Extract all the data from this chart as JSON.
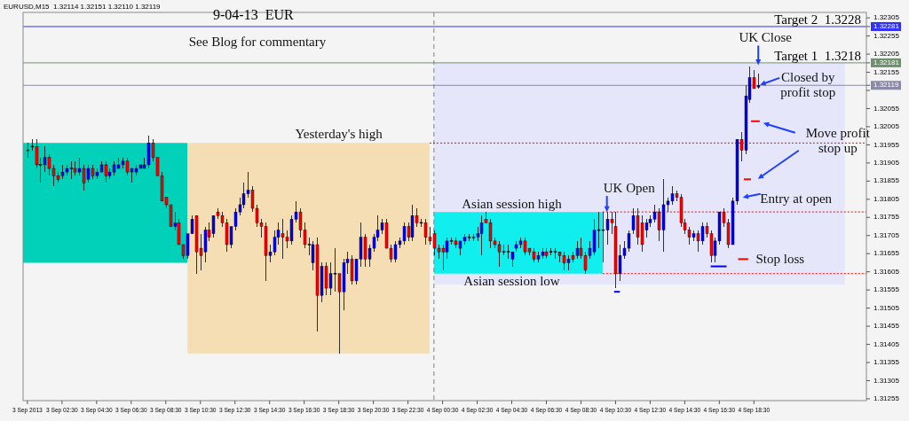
{
  "chart_data": {
    "type": "candlestick",
    "title": "EURUSD,M15  1.32114 1.32151 1.32110 1.32119",
    "subtitle": "9-04-13  EUR",
    "xlim": [
      "2013-09-03T00:15",
      "2013-09-05T01:00"
    ],
    "xticks": [
      {
        "value": "2013-09-03T00:30",
        "label": "3 Sep 2013"
      },
      {
        "value": "2013-09-03T02:30",
        "label": "3 Sep 02:30"
      },
      {
        "value": "2013-09-03T04:30",
        "label": "3 Sep 04:30"
      },
      {
        "value": "2013-09-03T06:30",
        "label": "3 Sep 06:30"
      },
      {
        "value": "2013-09-03T08:30",
        "label": "3 Sep 08:30"
      },
      {
        "value": "2013-09-03T10:30",
        "label": "3 Sep 10:30"
      },
      {
        "value": "2013-09-03T12:30",
        "label": "3 Sep 12:30"
      },
      {
        "value": "2013-09-03T14:30",
        "label": "3 Sep 14:30"
      },
      {
        "value": "2013-09-03T16:30",
        "label": "3 Sep 16:30"
      },
      {
        "value": "2013-09-03T18:30",
        "label": "3 Sep 18:30"
      },
      {
        "value": "2013-09-03T20:30",
        "label": "3 Sep 20:30"
      },
      {
        "value": "2013-09-03T22:30",
        "label": "3 Sep 22:30"
      },
      {
        "value": "2013-09-04T00:30",
        "label": "4 Sep 00:30"
      },
      {
        "value": "2013-09-04T02:30",
        "label": "4 Sep 02:30"
      },
      {
        "value": "2013-09-04T04:30",
        "label": "4 Sep 04:30"
      },
      {
        "value": "2013-09-04T06:30",
        "label": "4 Sep 06:30"
      },
      {
        "value": "2013-09-04T08:30",
        "label": "4 Sep 08:30"
      },
      {
        "value": "2013-09-04T10:30",
        "label": "4 Sep 10:30"
      },
      {
        "value": "2013-09-04T12:30",
        "label": "4 Sep 12:30"
      },
      {
        "value": "2013-09-04T14:30",
        "label": "4 Sep 14:30"
      },
      {
        "value": "2013-09-04T16:30",
        "label": "4 Sep 16:30"
      },
      {
        "value": "2013-09-04T18:30",
        "label": "4 Sep 18:30"
      }
    ],
    "ylim": [
      1.3125,
      1.3232
    ],
    "yticks": [
      1.32305,
      1.32281,
      1.32255,
      1.32205,
      1.32181,
      1.32155,
      1.32119,
      {
        "value": 1.32105,
        "label": null
      },
      1.32055,
      1.32005,
      1.31955,
      1.31905,
      1.31855,
      1.31805,
      1.31755,
      1.31705,
      1.31655,
      1.31605,
      1.31555,
      1.31505,
      1.31455,
      1.31405,
      1.31355,
      1.31305,
      1.31255
    ],
    "colors": [
      "#000000",
      "#000000",
      "#ff0000",
      "#000000",
      "#0000ff",
      "#ff0000",
      "#ff0000",
      "#ff0000",
      "#0000ff",
      "#0000ff",
      "#000000",
      "#ff0000",
      "#0000ff",
      "#ff0000",
      "#0000ff",
      "#ff0000",
      "#0000ff",
      "#0000ff",
      "#ff0000",
      "#0000ff",
      "#0000ff",
      "#0000ff",
      "#0000ff",
      "#ff0000",
      "#0000ff",
      "#0000ff",
      "#0000ff",
      "#0000ff",
      "#0000ff",
      "#ff0000",
      "#ff0000",
      "#ff0000",
      "#ff0000",
      "#ff0000",
      "#0000ff",
      "#ff0000",
      "#ff0000",
      "#0000ff",
      "#0000ff",
      "#ff0000",
      "#ff0000",
      "#0000ff",
      "#ff0000",
      "#0000ff",
      "#ff0000",
      "#ff0000",
      "#ff0000",
      "#0000ff",
      "#0000ff",
      "#0000ff",
      "#0000ff",
      "#0000ff",
      "#ff0000",
      "#ff0000",
      "#ff0000",
      "#ff0000",
      "#0000ff",
      "#0000ff",
      "#0000ff",
      "#ff0000",
      "#ff0000",
      "#0000ff",
      "#0000ff",
      "#ff0000",
      "#ff0000",
      "#000000",
      "#0000ff",
      "#ff0000",
      "#0000ff",
      "#ff0000",
      "#0000ff",
      "#000000",
      "#ff0000",
      "#0000ff",
      "#0000ff",
      "#ff0000",
      "#0000ff",
      "#0000ff",
      "#ff0000",
      "#0000ff",
      "#0000ff",
      "#0000ff",
      "#0000ff",
      "#ff0000",
      "#ff0000",
      "#0000ff",
      "#0000ff",
      "#0000ff",
      "#ff0000",
      "#0000ff",
      "#ff0000",
      "#000000",
      "#ff0000",
      "#ff0000",
      "#ff0000",
      "#ff0000",
      "#ff0000",
      "#0000ff",
      "#000000",
      "#ff0000",
      "#0000ff",
      "#0000ff",
      "#000000",
      "#000000",
      "#0000ff",
      "#0000ff",
      "#ff0000",
      "#ff0000",
      "#ff0000",
      "#ff0000",
      "#000000",
      "#000000",
      "#0000ff",
      "#0000ff",
      "#0000ff",
      "#ff0000",
      "#ff0000",
      "#ff0000",
      "#0000ff",
      "#0000ff",
      "#ff0000",
      "#000000",
      "#000000",
      "#ff0000",
      "#ff0000",
      "#0000ff",
      "#ff0000",
      "#0000ff",
      "#ff0000",
      "#ff0000",
      "#0000ff",
      "#0000ff",
      "#000000",
      "#000000",
      "#0000ff",
      "#ff0000",
      "#ff0000",
      "#0000ff",
      "#0000ff",
      "#0000ff",
      "#0000ff",
      "#ff0000",
      "#ff0000",
      "#0000ff",
      "#0000ff",
      "#0000ff",
      "#ff0000",
      "#0000ff",
      "#0000ff",
      "#0000ff",
      "#ff0000",
      "#ff0000",
      "#ff0000",
      "#ff0000",
      "#0000ff",
      "#ff0000",
      "#0000ff",
      "#ff0000",
      "#ff0000",
      "#0000ff",
      "#0000ff",
      "#ff0000",
      "#ff0000",
      "#0000ff",
      "#0000ff",
      "#ff0000",
      "#0000ff",
      "#0000ff",
      "#ff0000",
      "#0000ff"
    ],
    "x": [
      "2013-09-03T00:30",
      "2013-09-03T00:45",
      "2013-09-03T01:00",
      "2013-09-03T01:15",
      "2013-09-03T01:30",
      "2013-09-03T01:45",
      "2013-09-03T02:00",
      "2013-09-03T02:15",
      "2013-09-03T02:30",
      "2013-09-03T02:45",
      "2013-09-03T03:00",
      "2013-09-03T03:15",
      "2013-09-03T03:30",
      "2013-09-03T03:45",
      "2013-09-03T04:00",
      "2013-09-03T04:15",
      "2013-09-03T04:30",
      "2013-09-03T04:45",
      "2013-09-03T05:00",
      "2013-09-03T05:15",
      "2013-09-03T05:30",
      "2013-09-03T05:45",
      "2013-09-03T06:00",
      "2013-09-03T06:15",
      "2013-09-03T06:30",
      "2013-09-03T06:45",
      "2013-09-03T07:00",
      "2013-09-03T07:15",
      "2013-09-03T07:30",
      "2013-09-03T07:45",
      "2013-09-03T08:00",
      "2013-09-03T08:15",
      "2013-09-03T08:30",
      "2013-09-03T08:45",
      "2013-09-03T09:00",
      "2013-09-03T09:15",
      "2013-09-03T09:30",
      "2013-09-03T09:45",
      "2013-09-03T10:00",
      "2013-09-03T10:15",
      "2013-09-03T10:30",
      "2013-09-03T10:45",
      "2013-09-03T11:00",
      "2013-09-03T11:15",
      "2013-09-03T11:30",
      "2013-09-03T11:45",
      "2013-09-03T12:00",
      "2013-09-03T12:15",
      "2013-09-03T12:30",
      "2013-09-03T12:45",
      "2013-09-03T13:00",
      "2013-09-03T13:15",
      "2013-09-03T13:30",
      "2013-09-03T13:45",
      "2013-09-03T14:00",
      "2013-09-03T14:15",
      "2013-09-03T14:30",
      "2013-09-03T14:45",
      "2013-09-03T15:00",
      "2013-09-03T15:15",
      "2013-09-03T15:30",
      "2013-09-03T15:45",
      "2013-09-03T16:00",
      "2013-09-03T16:15",
      "2013-09-03T16:30",
      "2013-09-03T16:45",
      "2013-09-03T17:00",
      "2013-09-03T17:15",
      "2013-09-03T17:30",
      "2013-09-03T17:45",
      "2013-09-03T18:00",
      "2013-09-03T18:15",
      "2013-09-03T18:30",
      "2013-09-03T18:45",
      "2013-09-03T19:00",
      "2013-09-03T19:15",
      "2013-09-03T19:30",
      "2013-09-03T19:45",
      "2013-09-03T20:00",
      "2013-09-03T20:15",
      "2013-09-03T20:30",
      "2013-09-03T20:45",
      "2013-09-03T21:00",
      "2013-09-03T21:15",
      "2013-09-03T21:30",
      "2013-09-03T21:45",
      "2013-09-03T22:00",
      "2013-09-03T22:15",
      "2013-09-03T22:30",
      "2013-09-03T22:45",
      "2013-09-03T23:00",
      "2013-09-03T23:15",
      "2013-09-03T23:30",
      "2013-09-03T23:45",
      "2013-09-04T00:00",
      "2013-09-04T00:15",
      "2013-09-04T00:30",
      "2013-09-04T00:45",
      "2013-09-04T01:00",
      "2013-09-04T01:15",
      "2013-09-04T01:30",
      "2013-09-04T01:45",
      "2013-09-04T02:00",
      "2013-09-04T02:15",
      "2013-09-04T02:30",
      "2013-09-04T02:45",
      "2013-09-04T03:00",
      "2013-09-04T03:15",
      "2013-09-04T03:30",
      "2013-09-04T03:45",
      "2013-09-04T04:00",
      "2013-09-04T04:15",
      "2013-09-04T04:30",
      "2013-09-04T04:45",
      "2013-09-04T05:00",
      "2013-09-04T05:15",
      "2013-09-04T05:30",
      "2013-09-04T05:45",
      "2013-09-04T06:00",
      "2013-09-04T06:15",
      "2013-09-04T06:30",
      "2013-09-04T06:45",
      "2013-09-04T07:00",
      "2013-09-04T07:15",
      "2013-09-04T07:30",
      "2013-09-04T07:45",
      "2013-09-04T08:00",
      "2013-09-04T08:15",
      "2013-09-04T08:30",
      "2013-09-04T08:45",
      "2013-09-04T09:00",
      "2013-09-04T09:15",
      "2013-09-04T09:30",
      "2013-09-04T09:45",
      "2013-09-04T10:00",
      "2013-09-04T10:15",
      "2013-09-04T10:30",
      "2013-09-04T10:45",
      "2013-09-04T11:00",
      "2013-09-04T11:15",
      "2013-09-04T11:30",
      "2013-09-04T11:45",
      "2013-09-04T12:00",
      "2013-09-04T12:15",
      "2013-09-04T12:30",
      "2013-09-04T12:45",
      "2013-09-04T13:00",
      "2013-09-04T13:15",
      "2013-09-04T13:30",
      "2013-09-04T13:45",
      "2013-09-04T14:00",
      "2013-09-04T14:15",
      "2013-09-04T14:30",
      "2013-09-04T14:45",
      "2013-09-04T15:00",
      "2013-09-04T15:15",
      "2013-09-04T15:30",
      "2013-09-04T15:45",
      "2013-09-04T16:00",
      "2013-09-04T16:15",
      "2013-09-04T16:30",
      "2013-09-04T16:45",
      "2013-09-04T17:00",
      "2013-09-04T17:15",
      "2013-09-04T17:30",
      "2013-09-04T17:45",
      "2013-09-04T18:00",
      "2013-09-04T18:15",
      "2013-09-04T18:30",
      "2013-09-04T18:45"
    ],
    "ohlc": [
      [
        1.3194,
        1.3196,
        1.3192,
        1.3194
      ],
      [
        1.3195,
        1.3197,
        1.3194,
        1.3195
      ],
      [
        1.3195,
        1.3197,
        1.3189,
        1.319
      ],
      [
        1.319,
        1.3192,
        1.3185,
        1.319
      ],
      [
        1.319,
        1.3195,
        1.3188,
        1.3192
      ],
      [
        1.3192,
        1.3193,
        1.3187,
        1.3189
      ],
      [
        1.3189,
        1.319,
        1.3184,
        1.3187
      ],
      [
        1.3187,
        1.3188,
        1.3185,
        1.3186
      ],
      [
        1.3187,
        1.319,
        1.3186,
        1.3188
      ],
      [
        1.3188,
        1.319,
        1.3187,
        1.3189
      ],
      [
        1.3189,
        1.3191,
        1.3186,
        1.3189
      ],
      [
        1.3189,
        1.3191,
        1.3187,
        1.3188
      ],
      [
        1.3188,
        1.3192,
        1.3187,
        1.3189
      ],
      [
        1.3189,
        1.319,
        1.3183,
        1.3185
      ],
      [
        1.3186,
        1.319,
        1.3185,
        1.3189
      ],
      [
        1.3189,
        1.319,
        1.3186,
        1.3187
      ],
      [
        1.3187,
        1.3189,
        1.3186,
        1.3188
      ],
      [
        1.3188,
        1.3191,
        1.3188,
        1.319
      ],
      [
        1.319,
        1.3191,
        1.3185,
        1.3187
      ],
      [
        1.3187,
        1.3189,
        1.3186,
        1.3188
      ],
      [
        1.3188,
        1.3191,
        1.3187,
        1.319
      ],
      [
        1.3189,
        1.3192,
        1.3189,
        1.319
      ],
      [
        1.319,
        1.3192,
        1.3189,
        1.3191
      ],
      [
        1.3191,
        1.3192,
        1.3187,
        1.3188
      ],
      [
        1.3188,
        1.3189,
        1.3185,
        1.3189
      ],
      [
        1.3188,
        1.319,
        1.3187,
        1.3189
      ],
      [
        1.3189,
        1.319,
        1.3189,
        1.319
      ],
      [
        1.3189,
        1.3192,
        1.3189,
        1.319
      ],
      [
        1.319,
        1.3198,
        1.3189,
        1.3196
      ],
      [
        1.3196,
        1.3197,
        1.3191,
        1.3192
      ],
      [
        1.3192,
        1.3192,
        1.3187,
        1.3187
      ],
      [
        1.3187,
        1.3188,
        1.318,
        1.318
      ],
      [
        1.3181,
        1.3181,
        1.3178,
        1.3179
      ],
      [
        1.3179,
        1.3179,
        1.3173,
        1.3173
      ],
      [
        1.3173,
        1.3177,
        1.3172,
        1.3174
      ],
      [
        1.3174,
        1.3175,
        1.3168,
        1.3168
      ],
      [
        1.3168,
        1.3168,
        1.3164,
        1.3165
      ],
      [
        1.3165,
        1.3171,
        1.3164,
        1.3171
      ],
      [
        1.3171,
        1.3176,
        1.3171,
        1.3175
      ],
      [
        1.3176,
        1.3176,
        1.316,
        1.3166
      ],
      [
        1.3167,
        1.3171,
        1.3161,
        1.3165
      ],
      [
        1.3166,
        1.3173,
        1.3163,
        1.3172
      ],
      [
        1.3172,
        1.3174,
        1.3169,
        1.317
      ],
      [
        1.3171,
        1.3176,
        1.317,
        1.3176
      ],
      [
        1.3177,
        1.3178,
        1.3175,
        1.3176
      ],
      [
        1.3176,
        1.3177,
        1.3173,
        1.3174
      ],
      [
        1.3174,
        1.3175,
        1.3166,
        1.3168
      ],
      [
        1.3168,
        1.3173,
        1.3167,
        1.3173
      ],
      [
        1.3173,
        1.3178,
        1.3172,
        1.3177
      ],
      [
        1.3177,
        1.3181,
        1.3176,
        1.3179
      ],
      [
        1.3179,
        1.3185,
        1.3178,
        1.3182
      ],
      [
        1.3182,
        1.3188,
        1.3181,
        1.3183
      ],
      [
        1.3183,
        1.3184,
        1.3177,
        1.3178
      ],
      [
        1.3178,
        1.3179,
        1.3173,
        1.3174
      ],
      [
        1.3174,
        1.3175,
        1.317,
        1.3173
      ],
      [
        1.3173,
        1.3174,
        1.3158,
        1.3165
      ],
      [
        1.3165,
        1.3168,
        1.3163,
        1.3166
      ],
      [
        1.3166,
        1.3172,
        1.3165,
        1.317
      ],
      [
        1.317,
        1.3174,
        1.3168,
        1.3172
      ],
      [
        1.3171,
        1.3175,
        1.3164,
        1.317
      ],
      [
        1.317,
        1.3172,
        1.3167,
        1.3169
      ],
      [
        1.3169,
        1.3176,
        1.3168,
        1.3175
      ],
      [
        1.3175,
        1.318,
        1.3174,
        1.3177
      ],
      [
        1.3177,
        1.3178,
        1.317,
        1.3172
      ],
      [
        1.3172,
        1.3174,
        1.3167,
        1.3168
      ],
      [
        1.3168,
        1.317,
        1.3165,
        1.3168
      ],
      [
        1.3163,
        1.3169,
        1.3161,
        1.3168
      ],
      [
        1.3168,
        1.317,
        1.3144,
        1.3154
      ],
      [
        1.3154,
        1.3163,
        1.3152,
        1.3162
      ],
      [
        1.3162,
        1.3163,
        1.3154,
        1.3156
      ],
      [
        1.3156,
        1.3163,
        1.3154,
        1.316
      ],
      [
        1.316,
        1.3167,
        1.3155,
        1.316
      ],
      [
        1.316,
        1.316,
        1.3138,
        1.3155
      ],
      [
        1.3155,
        1.3164,
        1.315,
        1.3163
      ],
      [
        1.3163,
        1.3166,
        1.316,
        1.3164
      ],
      [
        1.3164,
        1.3165,
        1.3157,
        1.3158
      ],
      [
        1.3158,
        1.3164,
        1.3157,
        1.3164
      ],
      [
        1.3164,
        1.3174,
        1.3162,
        1.317
      ],
      [
        1.317,
        1.3171,
        1.3162,
        1.3164
      ],
      [
        1.3164,
        1.3168,
        1.3162,
        1.3167
      ],
      [
        1.3167,
        1.3171,
        1.3166,
        1.317
      ],
      [
        1.317,
        1.3176,
        1.3169,
        1.3172
      ],
      [
        1.3172,
        1.3175,
        1.3171,
        1.3174
      ],
      [
        1.3174,
        1.3175,
        1.3167,
        1.3167
      ],
      [
        1.3167,
        1.3168,
        1.3163,
        1.3164
      ],
      [
        1.3164,
        1.3169,
        1.3163,
        1.3168
      ],
      [
        1.3168,
        1.317,
        1.3167,
        1.3169
      ],
      [
        1.3169,
        1.3174,
        1.3168,
        1.3173
      ],
      [
        1.3173,
        1.3174,
        1.3169,
        1.317
      ],
      [
        1.317,
        1.3179,
        1.3169,
        1.3176
      ],
      [
        1.3176,
        1.3178,
        1.3173,
        1.3174
      ],
      [
        1.3174,
        1.3175,
        1.3173,
        1.3174
      ],
      [
        1.3174,
        1.3175,
        1.3168,
        1.317
      ],
      [
        1.317,
        1.3173,
        1.3168,
        1.3169
      ],
      [
        1.3171,
        1.3172,
        1.3165,
        1.3167
      ],
      [
        1.3167,
        1.3168,
        1.3164,
        1.3166
      ],
      [
        1.3167,
        1.3168,
        1.3161,
        1.3166
      ],
      [
        1.3166,
        1.317,
        1.3164,
        1.3169
      ],
      [
        1.3169,
        1.317,
        1.3168,
        1.3169
      ],
      [
        1.3169,
        1.317,
        1.3167,
        1.3168
      ],
      [
        1.3167,
        1.3169,
        1.3165,
        1.3169
      ],
      [
        1.3169,
        1.3171,
        1.3168,
        1.317
      ],
      [
        1.317,
        1.3171,
        1.3169,
        1.317
      ],
      [
        1.317,
        1.3171,
        1.3169,
        1.317
      ],
      [
        1.317,
        1.3173,
        1.3169,
        1.3171
      ],
      [
        1.3171,
        1.3176,
        1.3165,
        1.3174
      ],
      [
        1.3175,
        1.3177,
        1.3174,
        1.3174
      ],
      [
        1.3174,
        1.3175,
        1.3167,
        1.3169
      ],
      [
        1.3169,
        1.317,
        1.3167,
        1.3168
      ],
      [
        1.3168,
        1.3169,
        1.3162,
        1.3166
      ],
      [
        1.3166,
        1.3168,
        1.3165,
        1.3166
      ],
      [
        1.3166,
        1.3168,
        1.3164,
        1.3166
      ],
      [
        1.3164,
        1.3166,
        1.3162,
        1.3166
      ],
      [
        1.3167,
        1.3169,
        1.3166,
        1.3168
      ],
      [
        1.3168,
        1.317,
        1.3167,
        1.3169
      ],
      [
        1.3169,
        1.317,
        1.3165,
        1.3166
      ],
      [
        1.3167,
        1.3167,
        1.3165,
        1.3166
      ],
      [
        1.3166,
        1.3167,
        1.3163,
        1.3164
      ],
      [
        1.3164,
        1.3166,
        1.3163,
        1.3165
      ],
      [
        1.3165,
        1.3167,
        1.3164,
        1.3166
      ],
      [
        1.3166,
        1.3167,
        1.3164,
        1.3165
      ],
      [
        1.3166,
        1.3167,
        1.3165,
        1.3166
      ],
      [
        1.3166,
        1.3167,
        1.3164,
        1.3166
      ],
      [
        1.3166,
        1.3166,
        1.3163,
        1.3165
      ],
      [
        1.3165,
        1.3166,
        1.3161,
        1.3163
      ],
      [
        1.3163,
        1.3165,
        1.3161,
        1.3164
      ],
      [
        1.3165,
        1.3166,
        1.3163,
        1.3164
      ],
      [
        1.3165,
        1.3169,
        1.3164,
        1.3167
      ],
      [
        1.3167,
        1.317,
        1.3164,
        1.3165
      ],
      [
        1.3165,
        1.3166,
        1.316,
        1.3161
      ],
      [
        1.3165,
        1.3169,
        1.3164,
        1.3167
      ],
      [
        1.3166,
        1.3175,
        1.3165,
        1.3172
      ],
      [
        1.3172,
        1.3177,
        1.3167,
        1.3172
      ],
      [
        1.3172,
        1.3177,
        1.3163,
        1.3172
      ],
      [
        1.3172,
        1.3177,
        1.3168,
        1.3175
      ],
      [
        1.3175,
        1.3177,
        1.3171,
        1.3174
      ],
      [
        1.3173,
        1.3177,
        1.3156,
        1.316
      ],
      [
        1.316,
        1.3168,
        1.3158,
        1.3165
      ],
      [
        1.3165,
        1.3169,
        1.3164,
        1.3167
      ],
      [
        1.3167,
        1.3172,
        1.3166,
        1.3171
      ],
      [
        1.3172,
        1.3178,
        1.3171,
        1.3176
      ],
      [
        1.3176,
        1.3178,
        1.3168,
        1.317
      ],
      [
        1.3174,
        1.3176,
        1.3166,
        1.3168
      ],
      [
        1.3172,
        1.3175,
        1.317,
        1.3174
      ],
      [
        1.3174,
        1.3176,
        1.3173,
        1.3175
      ],
      [
        1.3175,
        1.3179,
        1.3174,
        1.3177
      ],
      [
        1.3177,
        1.3178,
        1.3169,
        1.3172
      ],
      [
        1.3172,
        1.3186,
        1.3166,
        1.3179
      ],
      [
        1.3179,
        1.3181,
        1.3177,
        1.318
      ],
      [
        1.318,
        1.3184,
        1.3179,
        1.3182
      ],
      [
        1.3182,
        1.3183,
        1.318,
        1.3181
      ],
      [
        1.3181,
        1.3182,
        1.3173,
        1.3174
      ],
      [
        1.3174,
        1.3175,
        1.3171,
        1.3172
      ],
      [
        1.3172,
        1.3173,
        1.3168,
        1.317
      ],
      [
        1.317,
        1.3172,
        1.3169,
        1.3171
      ],
      [
        1.3171,
        1.3172,
        1.3166,
        1.3169
      ],
      [
        1.3169,
        1.3174,
        1.3168,
        1.3173
      ],
      [
        1.3173,
        1.3174,
        1.317,
        1.3171
      ],
      [
        1.3171,
        1.3172,
        1.3163,
        1.3165
      ],
      [
        1.3165,
        1.317,
        1.3163,
        1.3169
      ],
      [
        1.3169,
        1.3177,
        1.3168,
        1.3177
      ],
      [
        1.3177,
        1.3178,
        1.3173,
        1.3174
      ],
      [
        1.3174,
        1.3175,
        1.3167,
        1.3168
      ],
      [
        1.3168,
        1.3181,
        1.3168,
        1.318
      ],
      [
        1.318,
        1.3197,
        1.3179,
        1.3197
      ],
      [
        1.3197,
        1.3199,
        1.3191,
        1.3194
      ],
      [
        1.3194,
        1.3212,
        1.3193,
        1.3209
      ],
      [
        1.3208,
        1.3217,
        1.3207,
        1.3214
      ],
      [
        1.3214,
        1.3216,
        1.3211,
        1.3211
      ],
      [
        1.32114,
        1.32151,
        1.3211,
        1.32119
      ]
    ],
    "series": [
      {
        "type": "line",
        "x": [
          "2013-09-03T00:15",
          "2013-09-03T09:45"
        ],
        "values": [
          null,
          null
        ],
        "lower": [
          1.3163,
          1.3163
        ],
        "upper": [
          1.3196,
          1.3196
        ],
        "color": "#00d1b8"
      },
      {
        "type": "line",
        "x": [
          "2013-09-03T09:45",
          "2013-09-03T23:45"
        ],
        "values": [
          null,
          null
        ],
        "lower": [
          1.3138,
          1.3138
        ],
        "upper": [
          1.3196,
          1.3196
        ],
        "color": "#f5deb3"
      },
      {
        "type": "line",
        "x": [
          "2013-09-04T00:00",
          "2013-09-04T23:45"
        ],
        "values": [
          null,
          null
        ],
        "lower": [
          1.3157,
          1.3157
        ],
        "upper": [
          1.3218,
          1.3218
        ],
        "color": "#e6e6fa"
      },
      {
        "type": "line",
        "x": [
          "2013-09-04T00:00",
          "2013-09-04T09:45"
        ],
        "values": [
          null,
          null
        ],
        "lower": [
          1.316,
          1.316
        ],
        "upper": [
          1.3177,
          1.3177
        ],
        "color": "#11eeee"
      },
      {
        "type": "line",
        "x": [
          "2013-09-03T23:45",
          "2013-09-05T01:00"
        ],
        "values": [
          1.3196,
          1.3196
        ],
        "color": "#ff0000",
        "line_style": "dotted"
      },
      {
        "type": "line",
        "x": [
          "2013-09-04T09:45",
          "2013-09-05T01:00"
        ],
        "values": [
          1.3177,
          1.3177
        ],
        "color": "#ff0000",
        "line_style": "dotted"
      },
      {
        "type": "line",
        "x": [
          "2013-09-04T09:45",
          "2013-09-05T01:00"
        ],
        "values": [
          1.316,
          1.316
        ],
        "color": "#ff0000",
        "line_style": "dotted"
      },
      {
        "type": "line",
        "x": [
          "2013-09-04T18:20",
          "2013-09-04T18:50"
        ],
        "values": [
          1.3202,
          1.3202
        ],
        "color": "#ff0000",
        "line_style": "solid"
      },
      {
        "type": "line",
        "x": [
          "2013-09-04T17:55",
          "2013-09-04T18:20"
        ],
        "values": [
          1.3186,
          1.3186
        ],
        "color": "#ff0000",
        "line_style": "solid"
      },
      {
        "type": "line",
        "x": [
          "2013-09-04T17:35",
          "2013-09-04T18:10"
        ],
        "values": [
          1.3164,
          1.3164
        ],
        "color": "#ff0000",
        "line_style": "solid"
      },
      {
        "type": "line",
        "x": [
          "2013-09-04T10:25",
          "2013-09-04T10:45"
        ],
        "values": [
          1.3155,
          1.3155
        ],
        "color": "#0000ff",
        "line_style": "solid"
      },
      {
        "type": "line",
        "x": [
          "2013-09-04T16:00",
          "2013-09-04T16:55"
        ],
        "values": [
          1.3162,
          1.3162
        ],
        "color": "#0000ff",
        "line_style": "solid"
      }
    ],
    "ref_lines": [
      {
        "axis": "y",
        "value": 1.32281,
        "label": "Target 2  1.3228",
        "color": "#3030ff",
        "line_style": "solid"
      },
      {
        "axis": "y",
        "value": 1.32181,
        "label": "Target 1  1.3218",
        "color": "#6f8f6f",
        "line_style": "solid"
      },
      {
        "axis": "y",
        "value": 1.32119,
        "label": null,
        "color": "#8a8aa8",
        "line_style": "solid"
      },
      {
        "axis": "x",
        "value": "2013-09-04T00:00",
        "label": null,
        "color": "#808080",
        "line_style": "dashed"
      }
    ],
    "annotations": [
      "See Blog for commentary",
      {
        "text": "Yesterday's high",
        "x": "2013-09-03T18:30",
        "y": 1.3196
      },
      {
        "text": "Asian session high",
        "x": "2013-09-04T04:30",
        "y": 1.3177
      },
      {
        "text": "Asian session low",
        "x": "2013-09-04T04:30",
        "y": 1.316
      },
      {
        "text": "UK Open",
        "x": "2013-09-04T10:00",
        "y": 1.3177
      },
      {
        "text": "UK Close",
        "x": "2013-09-04T18:45",
        "y": 1.3217
      },
      {
        "text": "Closed by profit stop",
        "x": "2013-09-04T18:45",
        "y": 1.3212
      },
      {
        "text": "Move profit stop up",
        "x": "2013-09-04T18:50",
        "y": 1.3202
      },
      {
        "text": "Entry at open",
        "x": "2013-09-04T17:45",
        "y": 1.3181
      },
      {
        "text": "Stop loss",
        "x": "2013-09-04T18:10",
        "y": 1.3164
      }
    ],
    "grid": false
  }
}
